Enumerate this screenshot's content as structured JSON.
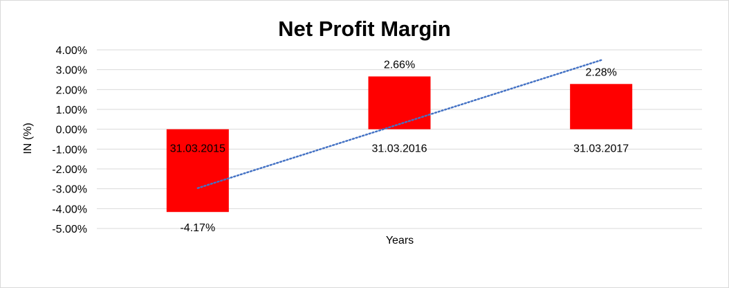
{
  "chart_data": {
    "type": "bar",
    "title": "Net Profit Margin",
    "xlabel": "Years",
    "ylabel": "IN (%)",
    "categories": [
      "31.03.2015",
      "31.03.2016",
      "31.03.2017"
    ],
    "values": [
      -4.17,
      2.66,
      2.28
    ],
    "data_labels": [
      "-4.17%",
      "2.66%",
      "2.28%"
    ],
    "ylim": [
      -5,
      4
    ],
    "ytick_values": [
      4,
      3,
      2,
      1,
      0,
      -1,
      -2,
      -3,
      -4,
      -5
    ],
    "ytick_labels": [
      "4.00%",
      "3.00%",
      "2.00%",
      "1.00%",
      "0.00%",
      "-1.00%",
      "-2.00%",
      "-3.00%",
      "-4.00%",
      "-5.00%"
    ],
    "grid": true,
    "legend": "none",
    "bar_color": "#ff0000",
    "trendline": {
      "type": "linear",
      "style": "dotted",
      "color": "#4472c4"
    }
  }
}
